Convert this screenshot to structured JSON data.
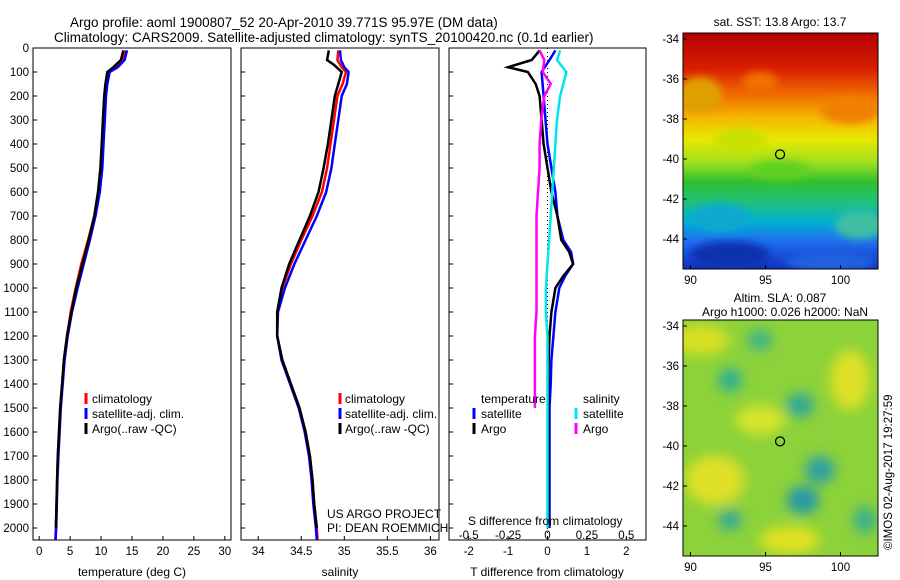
{
  "header": {
    "title_line1": "Argo profile: aoml 1900807_52 20-Apr-2010 39.771S 95.97E (DM data)",
    "title_line2": "Climatology: CARS2009. Satellite-adjusted climatology: synTS_20100420.nc (0.1d earlier)"
  },
  "project": {
    "line1": "US ARGO PROJECT",
    "line2": "PI: DEAN ROEMMICH"
  },
  "watermark": "©IMOS 02-Aug-2017 19:27:59",
  "colors": {
    "climatology": "#ff0000",
    "satellite": "#0000ff",
    "argo": "#000000",
    "sal_satellite": "#00e5ee",
    "sal_argo": "#ff00ff"
  },
  "chart_data": [
    {
      "type": "line",
      "id": "temperature",
      "xlabel": "temperature (deg C)",
      "ylabel": "",
      "xlim": [
        -1,
        31
      ],
      "ylim": [
        2050,
        0
      ],
      "xticks": [
        "0",
        "5",
        "10",
        "15",
        "20",
        "25",
        "30"
      ],
      "yticks": [
        "0",
        "100",
        "200",
        "300",
        "400",
        "500",
        "600",
        "700",
        "800",
        "900",
        "1000",
        "1100",
        "1200",
        "1300",
        "1400",
        "1500",
        "1600",
        "1700",
        "1800",
        "1900",
        "2000"
      ],
      "legend": [
        "climatology",
        "satellite-adj. clim.",
        "Argo(..raw -QC)"
      ],
      "series": [
        {
          "name": "climatology",
          "color": "#ff0000",
          "depth": [
            10,
            50,
            80,
            100,
            150,
            200,
            300,
            400,
            500,
            600,
            700,
            800,
            900,
            1000,
            1100,
            1200,
            1300,
            1400,
            1500,
            1600,
            1700,
            1800,
            1900,
            2000,
            2050
          ],
          "values": [
            14.0,
            13.6,
            12.5,
            11.2,
            10.8,
            10.6,
            10.4,
            10.2,
            10.0,
            9.6,
            8.9,
            7.9,
            6.8,
            5.9,
            5.1,
            4.5,
            4.0,
            3.7,
            3.4,
            3.2,
            3.0,
            2.9,
            2.8,
            2.7,
            2.6
          ]
        },
        {
          "name": "satellite-adj. clim.",
          "color": "#0000ff",
          "depth": [
            10,
            50,
            80,
            100,
            150,
            200,
            300,
            400,
            500,
            600,
            700,
            800,
            900,
            1000,
            1100,
            1200,
            1300,
            1400,
            1500,
            1600,
            1700,
            1800,
            1900,
            2000,
            2050
          ],
          "values": [
            14.2,
            13.8,
            12.7,
            11.4,
            11.0,
            10.8,
            10.6,
            10.4,
            10.2,
            9.8,
            9.1,
            8.2,
            7.2,
            6.2,
            5.3,
            4.6,
            4.1,
            3.8,
            3.5,
            3.3,
            3.1,
            2.95,
            2.85,
            2.75,
            2.65
          ]
        },
        {
          "name": "Argo(..raw -QC)",
          "color": "#000000",
          "depth": [
            10,
            50,
            80,
            100,
            150,
            200,
            300,
            400,
            500,
            600,
            700,
            800,
            900,
            1000,
            1100,
            1200,
            1300,
            1400,
            1500,
            1600,
            1700,
            1800,
            1900,
            2000
          ],
          "values": [
            13.6,
            13.2,
            12.0,
            11.0,
            10.7,
            10.5,
            10.3,
            10.1,
            9.9,
            9.5,
            8.9,
            8.0,
            7.0,
            6.0,
            5.2,
            4.5,
            4.0,
            3.7,
            3.4,
            3.2,
            3.0,
            2.9,
            2.8,
            2.7
          ]
        }
      ]
    },
    {
      "type": "line",
      "id": "salinity",
      "xlabel": "salinity",
      "ylabel": "",
      "xlim": [
        33.8,
        36.1
      ],
      "ylim": [
        2050,
        0
      ],
      "xticks": [
        "34",
        "34.5",
        "35",
        "35.5",
        "36"
      ],
      "xtick_values": [
        34,
        34.5,
        35,
        35.5,
        36
      ],
      "legend": [
        "climatology",
        "satellite-adj. clim.",
        "Argo(..raw -QC)"
      ],
      "series": [
        {
          "name": "climatology",
          "color": "#ff0000",
          "depth": [
            10,
            50,
            80,
            100,
            150,
            200,
            300,
            400,
            500,
            600,
            700,
            800,
            900,
            1000,
            1100,
            1200,
            1300,
            1400,
            1500,
            1600,
            1700,
            1800,
            1900,
            2000,
            2050
          ],
          "values": [
            34.93,
            34.92,
            34.97,
            35.02,
            34.98,
            34.92,
            34.88,
            34.84,
            34.8,
            34.74,
            34.63,
            34.5,
            34.38,
            34.28,
            34.22,
            34.22,
            34.28,
            34.38,
            34.48,
            34.55,
            34.6,
            34.63,
            34.65,
            34.68,
            34.69
          ]
        },
        {
          "name": "satellite-adj. clim.",
          "color": "#0000ff",
          "depth": [
            10,
            50,
            80,
            100,
            150,
            200,
            300,
            400,
            500,
            600,
            700,
            800,
            900,
            1000,
            1100,
            1200,
            1300,
            1400,
            1500,
            1600,
            1700,
            1800,
            1900,
            2000,
            2050
          ],
          "values": [
            34.95,
            34.96,
            35.0,
            35.05,
            35.03,
            34.97,
            34.93,
            34.89,
            34.85,
            34.79,
            34.68,
            34.55,
            34.42,
            34.31,
            34.23,
            34.22,
            34.27,
            34.37,
            34.47,
            34.54,
            34.59,
            34.62,
            34.64,
            34.67,
            34.68
          ]
        },
        {
          "name": "Argo(..raw -QC)",
          "color": "#000000",
          "depth": [
            10,
            50,
            70,
            100,
            150,
            200,
            300,
            400,
            500,
            600,
            700,
            800,
            900,
            1000,
            1100,
            1200,
            1300,
            1400,
            1500,
            1600,
            1700,
            1800,
            1900,
            2000
          ],
          "values": [
            34.82,
            34.8,
            34.88,
            34.97,
            34.93,
            34.89,
            34.85,
            34.81,
            34.76,
            34.7,
            34.6,
            34.48,
            34.36,
            34.27,
            34.22,
            34.22,
            34.28,
            34.38,
            34.48,
            34.55,
            34.6,
            34.63,
            34.65,
            34.68
          ]
        }
      ]
    },
    {
      "type": "line",
      "id": "difference",
      "xlabel": "T difference from climatology",
      "title_bottom": "S difference from climatology",
      "xlim": [
        -2.5,
        2.5
      ],
      "ylim": [
        2050,
        0
      ],
      "xticks": [
        "-2",
        "-1",
        "0",
        "1",
        "2"
      ],
      "xtick_values": [
        -2,
        -1,
        0,
        1,
        2
      ],
      "s_ticks": [
        "-0.5",
        "-0.25",
        "0",
        "0.25",
        "0.5"
      ],
      "s_tick_values": [
        -0.5,
        -0.25,
        0,
        0.25,
        0.5
      ],
      "legend_temperature": "temperature",
      "legend_salinity": "salinity",
      "legend_satellite": "satellite",
      "legend_argo": "Argo",
      "series": [
        {
          "name": "T satellite",
          "color": "#0000ff",
          "depth": [
            10,
            50,
            100,
            200,
            300,
            400,
            500,
            600,
            700,
            800,
            850,
            900,
            950,
            1000,
            1100,
            1200,
            1300,
            1400,
            1500,
            1600,
            1800,
            2000
          ],
          "values": [
            0.2,
            0.05,
            -0.15,
            -0.1,
            -0.05,
            0.0,
            0.1,
            0.2,
            0.25,
            0.4,
            0.6,
            0.65,
            0.45,
            0.3,
            0.2,
            0.15,
            0.1,
            0.08,
            0.05,
            0.05,
            0.05,
            0.05
          ]
        },
        {
          "name": "T argo",
          "color": "#000000",
          "depth": [
            10,
            50,
            80,
            100,
            150,
            200,
            300,
            400,
            500,
            600,
            700,
            800,
            850,
            900,
            950,
            1000,
            1100,
            1200,
            1300,
            1400,
            1500,
            1600,
            1800,
            2000
          ],
          "values": [
            -0.2,
            -0.4,
            -1.0,
            -0.5,
            -0.3,
            -0.2,
            -0.15,
            -0.1,
            0.0,
            0.1,
            0.25,
            0.35,
            0.55,
            0.65,
            0.4,
            0.2,
            0.1,
            0.05,
            0.03,
            0.02,
            0.02,
            0.02,
            0.02,
            0.02
          ]
        },
        {
          "name": "S satellite",
          "color": "#00e5ee",
          "depth": [
            10,
            50,
            100,
            150,
            200,
            300,
            400,
            500,
            600,
            700,
            800,
            900,
            1000,
            1100,
            1200,
            1300,
            1400,
            1500,
            1600,
            1800,
            2000
          ],
          "values": [
            0.08,
            0.06,
            0.12,
            0.1,
            0.08,
            0.06,
            0.05,
            0.04,
            0.03,
            0.02,
            0.01,
            0.0,
            -0.01,
            -0.01,
            0.0,
            0.0,
            0.0,
            0.0,
            0.0,
            0.0,
            0.0
          ]
        },
        {
          "name": "S argo",
          "color": "#ff00ff",
          "depth": [
            10,
            50,
            100,
            150,
            200,
            300,
            400,
            500,
            600,
            700,
            800,
            900,
            1000,
            1100,
            1200,
            1300,
            1400,
            1500
          ],
          "values": [
            -0.05,
            -0.02,
            -0.03,
            0.02,
            -0.02,
            -0.04,
            -0.05,
            -0.05,
            -0.06,
            -0.07,
            -0.07,
            -0.07,
            -0.07,
            -0.07,
            -0.08,
            -0.08,
            -0.08,
            -0.08
          ]
        }
      ]
    },
    {
      "type": "heatmap",
      "id": "sst_map",
      "title": "sat. SST: 13.8  Argo: 13.7",
      "xticks": [
        "90",
        "95",
        "100"
      ],
      "xtick_values": [
        90,
        95,
        100
      ],
      "yticks": [
        "-34",
        "-36",
        "-38",
        "-40",
        "-42",
        "-44"
      ],
      "ytick_values": [
        -34,
        -36,
        -38,
        -40,
        -42,
        -44
      ],
      "xlim": [
        89.5,
        102.5
      ],
      "ylim": [
        -45.5,
        -33.7
      ],
      "marker": [
        95.97,
        -39.77
      ]
    },
    {
      "type": "heatmap",
      "id": "sla_map",
      "title_line1": "Altim. SLA: 0.087",
      "title_line2": "Argo h1000: 0.026  h2000: NaN",
      "xticks": [
        "90",
        "95",
        "100"
      ],
      "xtick_values": [
        90,
        95,
        100
      ],
      "yticks": [
        "-34",
        "-36",
        "-38",
        "-40",
        "-42",
        "-44"
      ],
      "ytick_values": [
        -34,
        -36,
        -38,
        -40,
        -42,
        -44
      ],
      "xlim": [
        89.5,
        102.5
      ],
      "ylim": [
        -45.5,
        -33.7
      ],
      "marker": [
        95.97,
        -39.77
      ]
    }
  ]
}
